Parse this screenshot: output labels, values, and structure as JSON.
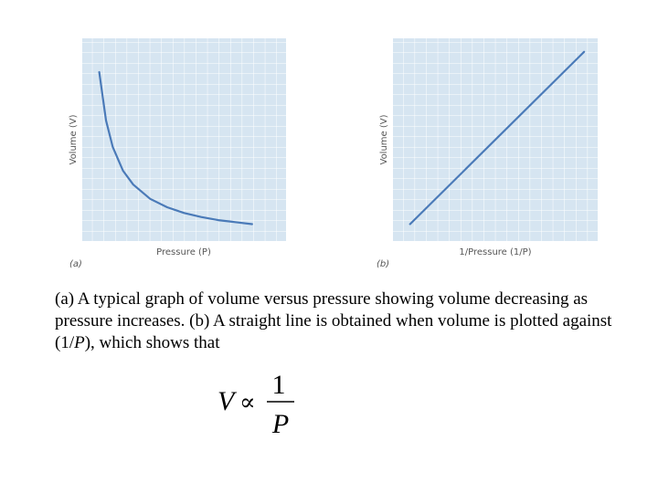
{
  "chart_data": [
    {
      "type": "line",
      "panel_label": "(a)",
      "xlabel": "Pressure (P)",
      "ylabel": "Volume (V)",
      "xlim": [
        0,
        6
      ],
      "ylim": [
        0,
        6
      ],
      "grid": true,
      "series": [
        {
          "color": "#4a7ab8",
          "x": [
            0.5,
            0.7,
            0.9,
            1.2,
            1.5,
            2.0,
            2.5,
            3.0,
            3.5,
            4.0,
            4.5,
            5.0
          ],
          "y": [
            5.0,
            3.57,
            2.78,
            2.08,
            1.67,
            1.25,
            1.0,
            0.83,
            0.71,
            0.62,
            0.56,
            0.5
          ]
        }
      ]
    },
    {
      "type": "line",
      "panel_label": "(b)",
      "xlabel": "1/Pressure (1/P)",
      "ylabel": "Volume (V)",
      "xlim": [
        0,
        6
      ],
      "ylim": [
        0,
        6
      ],
      "grid": true,
      "series": [
        {
          "color": "#4a7ab8",
          "x": [
            0.5,
            5.6
          ],
          "y": [
            0.5,
            5.6
          ]
        }
      ]
    }
  ],
  "caption": {
    "part1": "(a) A typical graph of volume versus pressure showing volume decreasing as pressure increases. (b) A straight line is obtained when volume is plotted against (1/",
    "p_letter": "P",
    "part2": "), which shows that"
  },
  "formula": {
    "lhs": "V",
    "relation": "∝",
    "numerator": "1",
    "denominator": "P"
  }
}
